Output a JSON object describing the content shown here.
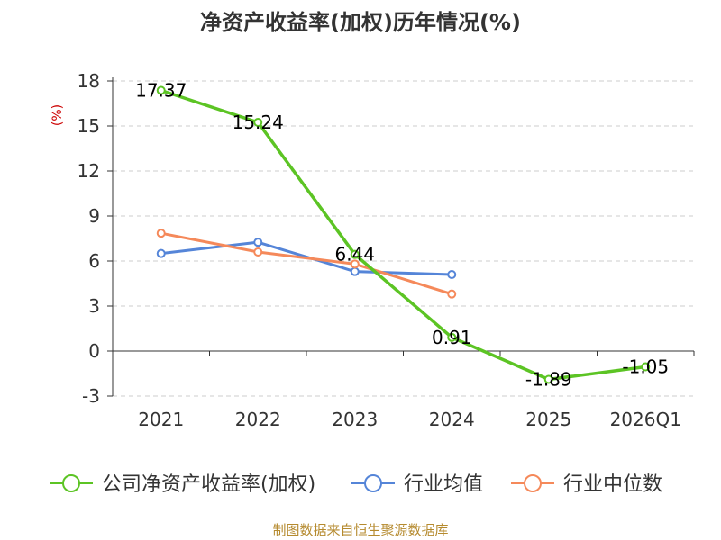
{
  "chart_data": {
    "type": "line",
    "title": "净资产收益率(加权)历年情况(%)",
    "ylabel": "(%)",
    "xlabel": "",
    "categories": [
      "2021",
      "2022",
      "2023",
      "2024",
      "2025",
      "2026Q1"
    ],
    "ylim": [
      -3,
      18
    ],
    "yticks": [
      -3,
      0,
      3,
      6,
      9,
      12,
      15,
      18
    ],
    "grid": true,
    "legend_position": "bottom",
    "series": [
      {
        "name": "公司净资产收益率(加权)",
        "color": "#5cc424",
        "values": [
          17.37,
          15.24,
          6.44,
          0.91,
          -1.89,
          -1.05
        ],
        "labels": [
          "17.37",
          "15.24",
          "6.44",
          "0.91",
          "-1.89",
          "-1.05"
        ]
      },
      {
        "name": "行业均值",
        "color": "#5585d8",
        "values": [
          6.5,
          7.25,
          5.3,
          5.1,
          null,
          null
        ]
      },
      {
        "name": "行业中位数",
        "color": "#f5895a",
        "values": [
          7.85,
          6.6,
          5.8,
          3.8,
          null,
          null
        ]
      }
    ],
    "source": "制图数据来自恒生聚源数据库"
  }
}
